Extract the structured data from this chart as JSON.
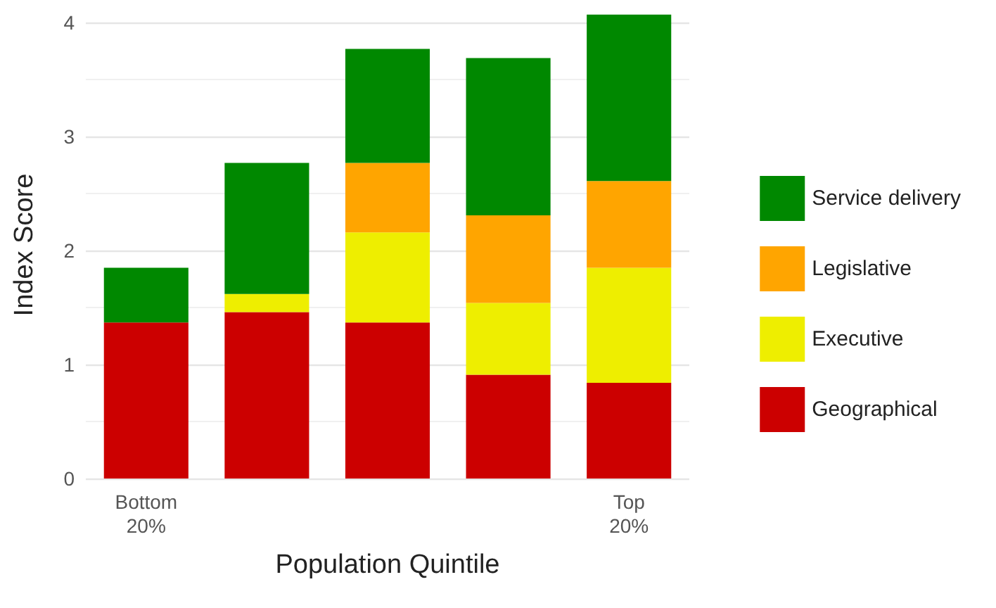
{
  "chart_data": {
    "type": "bar",
    "stacked": true,
    "xlabel": "Population Quintile",
    "ylabel": "Index Score",
    "categories": [
      "Bottom\n20%",
      null,
      null,
      null,
      "Top\n20%"
    ],
    "series": [
      {
        "name": "Geographical",
        "color": "#cc0000",
        "values": [
          1.37,
          1.46,
          1.37,
          0.91,
          0.84
        ]
      },
      {
        "name": "Executive",
        "color": "#eeee00",
        "values": [
          0,
          0.16,
          0.79,
          0.63,
          1.01
        ]
      },
      {
        "name": "Legislative",
        "color": "#ffa500",
        "values": [
          0,
          0,
          0.61,
          0.77,
          0.76
        ]
      },
      {
        "name": "Service delivery",
        "color": "#008800",
        "values": [
          0.48,
          1.15,
          1.0,
          1.38,
          1.46
        ]
      }
    ],
    "ylim": [
      0,
      4.1
    ],
    "yticks": [
      0,
      1,
      2,
      3,
      4
    ],
    "grid": "y",
    "legend": "right"
  }
}
